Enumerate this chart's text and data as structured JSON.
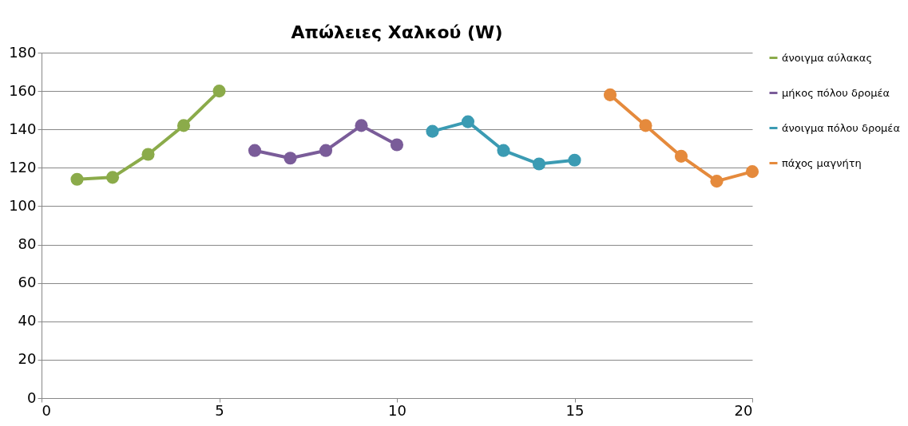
{
  "chart_data": {
    "type": "line",
    "title": "Απώλειες Χαλκού (W)",
    "xlim": [
      0,
      20
    ],
    "xticks": [
      0,
      5,
      10,
      15,
      20
    ],
    "ylim": [
      0,
      180
    ],
    "yticks": [
      0,
      20,
      40,
      60,
      80,
      100,
      120,
      140,
      160,
      180
    ],
    "grid": "y",
    "legend": "right",
    "marker": "circle",
    "line_style": "solid",
    "series": [
      {
        "name": "άνοιγμα αύλακας",
        "color": "#8bab4a",
        "x": [
          1,
          2,
          3,
          4,
          5
        ],
        "values": [
          114,
          115,
          127,
          142,
          160
        ]
      },
      {
        "name": "μήκος πόλου δρομέα",
        "color": "#7a5c99",
        "x": [
          6,
          7,
          8,
          9,
          10
        ],
        "values": [
          129,
          125,
          129,
          142,
          132
        ]
      },
      {
        "name": "άνοιγμα πόλου δρομέα",
        "color": "#3b9bb3",
        "x": [
          11,
          12,
          13,
          14,
          15
        ],
        "values": [
          139,
          144,
          129,
          122,
          124
        ]
      },
      {
        "name": "πάχος μαγνήτη",
        "color": "#e58a3c",
        "x": [
          16,
          17,
          18,
          19,
          20
        ],
        "values": [
          158,
          142,
          126,
          113,
          118
        ]
      }
    ]
  }
}
